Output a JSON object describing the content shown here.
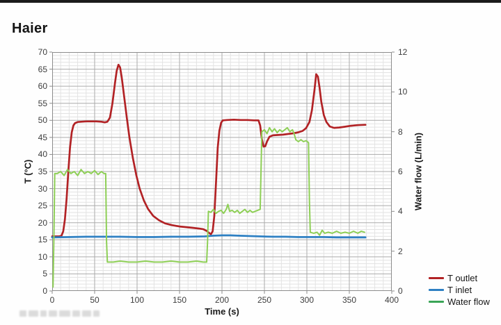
{
  "header": {
    "title": "Haier"
  },
  "legend": {
    "items": [
      {
        "label": "T outlet",
        "color": "#b22225"
      },
      {
        "label": "T inlet",
        "color": "#2e80c3"
      },
      {
        "label": "Water flow",
        "color": "#3aa557"
      }
    ]
  },
  "chart_data": {
    "type": "line",
    "title": "Haier",
    "xlabel": "Time (s)",
    "ylabel_left": "T (°C)",
    "ylabel_right": "Water flow (L/min)",
    "xlim": [
      0,
      400
    ],
    "ylim_left": [
      0,
      70
    ],
    "ylim_right": [
      0,
      12
    ],
    "x_ticks": [
      0,
      50,
      100,
      150,
      200,
      250,
      300,
      350,
      400
    ],
    "y_left_ticks": [
      0,
      5,
      10,
      15,
      20,
      25,
      30,
      35,
      40,
      45,
      50,
      55,
      60,
      65,
      70
    ],
    "y_right_ticks": [
      0,
      2,
      4,
      6,
      8,
      10,
      12
    ],
    "x_minor_step": 10,
    "y_left_minor_step": 1,
    "grid": true,
    "legend_position": "bottom-right-outside",
    "colors": {
      "minor_grid": "#e3e3e3",
      "major_grid": "#ababab",
      "border": "#8c8c8c"
    },
    "series": [
      {
        "name": "T outlet",
        "axis": "left",
        "color": "#b22225",
        "width": 2.7,
        "points": [
          [
            0,
            16
          ],
          [
            4,
            16
          ],
          [
            8,
            16
          ],
          [
            11,
            16.2
          ],
          [
            13,
            17.5
          ],
          [
            15,
            21
          ],
          [
            17,
            27
          ],
          [
            19,
            35
          ],
          [
            21,
            42
          ],
          [
            23,
            46.5
          ],
          [
            25,
            48.5
          ],
          [
            27,
            49.2
          ],
          [
            30,
            49.5
          ],
          [
            34,
            49.6
          ],
          [
            40,
            49.7
          ],
          [
            46,
            49.7
          ],
          [
            52,
            49.7
          ],
          [
            58,
            49.6
          ],
          [
            62,
            49.4
          ],
          [
            65,
            49.6
          ],
          [
            68,
            50.8
          ],
          [
            71,
            55
          ],
          [
            74,
            61
          ],
          [
            76,
            64.5
          ],
          [
            78,
            66.3
          ],
          [
            80,
            65.5
          ],
          [
            82,
            62.5
          ],
          [
            85,
            56.5
          ],
          [
            88,
            50.5
          ],
          [
            91,
            45
          ],
          [
            95,
            39
          ],
          [
            99,
            34
          ],
          [
            103,
            30
          ],
          [
            108,
            26.5
          ],
          [
            113,
            24
          ],
          [
            119,
            22
          ],
          [
            126,
            20.7
          ],
          [
            133,
            19.8
          ],
          [
            141,
            19.3
          ],
          [
            150,
            18.9
          ],
          [
            158,
            18.7
          ],
          [
            166,
            18.5
          ],
          [
            173,
            18.3
          ],
          [
            178,
            18.1
          ],
          [
            182,
            17.6
          ],
          [
            185,
            17
          ],
          [
            187,
            16.6
          ],
          [
            189,
            17.5
          ],
          [
            191,
            22
          ],
          [
            193,
            32
          ],
          [
            195,
            42
          ],
          [
            197,
            47
          ],
          [
            199,
            49.3
          ],
          [
            201,
            50
          ],
          [
            206,
            50.1
          ],
          [
            214,
            50.2
          ],
          [
            222,
            50.1
          ],
          [
            230,
            50.1
          ],
          [
            238,
            50
          ],
          [
            243,
            50
          ],
          [
            245,
            48.5
          ],
          [
            247,
            44.5
          ],
          [
            249,
            42.3
          ],
          [
            251,
            42.4
          ],
          [
            253,
            43.8
          ],
          [
            256,
            45.2
          ],
          [
            260,
            45.6
          ],
          [
            266,
            45.7
          ],
          [
            272,
            45.8
          ],
          [
            278,
            46
          ],
          [
            284,
            46.2
          ],
          [
            290,
            46.5
          ],
          [
            295,
            46.9
          ],
          [
            299,
            47.7
          ],
          [
            303,
            49.5
          ],
          [
            306,
            53
          ],
          [
            309,
            59
          ],
          [
            311,
            63.5
          ],
          [
            313,
            62.8
          ],
          [
            315,
            59.5
          ],
          [
            317,
            55.5
          ],
          [
            320,
            51.5
          ],
          [
            323,
            49.5
          ],
          [
            327,
            48.2
          ],
          [
            332,
            47.8
          ],
          [
            338,
            47.9
          ],
          [
            344,
            48.1
          ],
          [
            352,
            48.4
          ],
          [
            360,
            48.6
          ],
          [
            369,
            48.7
          ]
        ]
      },
      {
        "name": "T inlet",
        "axis": "left",
        "color": "#2e80c3",
        "width": 2.8,
        "points": [
          [
            0,
            15.7
          ],
          [
            20,
            15.8
          ],
          [
            40,
            15.9
          ],
          [
            60,
            15.9
          ],
          [
            80,
            15.9
          ],
          [
            100,
            15.8
          ],
          [
            120,
            15.8
          ],
          [
            140,
            15.9
          ],
          [
            160,
            15.9
          ],
          [
            180,
            16
          ],
          [
            190,
            16.2
          ],
          [
            200,
            16.3
          ],
          [
            210,
            16.3
          ],
          [
            220,
            16.2
          ],
          [
            232,
            16.1
          ],
          [
            245,
            16
          ],
          [
            260,
            15.9
          ],
          [
            275,
            15.9
          ],
          [
            290,
            15.8
          ],
          [
            305,
            15.8
          ],
          [
            320,
            15.8
          ],
          [
            335,
            15.7
          ],
          [
            350,
            15.7
          ],
          [
            369,
            15.7
          ]
        ]
      },
      {
        "name": "Water flow",
        "axis": "right",
        "color": "#8ecf56",
        "width": 2,
        "points": [
          [
            1,
            0.2
          ],
          [
            2,
            2.5
          ],
          [
            3,
            5.9
          ],
          [
            6,
            5.9
          ],
          [
            10,
            6
          ],
          [
            14,
            5.8
          ],
          [
            18,
            6.1
          ],
          [
            22,
            5.9
          ],
          [
            26,
            6
          ],
          [
            30,
            5.8
          ],
          [
            34,
            6.1
          ],
          [
            38,
            5.9
          ],
          [
            42,
            6
          ],
          [
            46,
            5.9
          ],
          [
            50,
            6.05
          ],
          [
            54,
            5.85
          ],
          [
            58,
            6
          ],
          [
            61,
            5.9
          ],
          [
            63,
            5.9
          ],
          [
            64,
            2.5
          ],
          [
            65,
            1.45
          ],
          [
            72,
            1.45
          ],
          [
            80,
            1.5
          ],
          [
            90,
            1.45
          ],
          [
            100,
            1.45
          ],
          [
            110,
            1.5
          ],
          [
            120,
            1.45
          ],
          [
            130,
            1.45
          ],
          [
            140,
            1.5
          ],
          [
            150,
            1.45
          ],
          [
            160,
            1.45
          ],
          [
            170,
            1.5
          ],
          [
            178,
            1.45
          ],
          [
            182,
            1.45
          ],
          [
            183,
            2.5
          ],
          [
            184,
            4
          ],
          [
            187,
            3.95
          ],
          [
            190,
            4.1
          ],
          [
            193,
            3.9
          ],
          [
            196,
            4
          ],
          [
            199,
            4.05
          ],
          [
            202,
            3.9
          ],
          [
            205,
            4.1
          ],
          [
            207,
            4.35
          ],
          [
            209,
            4
          ],
          [
            212,
            4.05
          ],
          [
            215,
            3.95
          ],
          [
            218,
            4.05
          ],
          [
            221,
            3.9
          ],
          [
            224,
            4
          ],
          [
            227,
            4.1
          ],
          [
            230,
            3.95
          ],
          [
            233,
            4.05
          ],
          [
            236,
            3.95
          ],
          [
            239,
            4
          ],
          [
            242,
            4.05
          ],
          [
            245,
            4.1
          ],
          [
            246,
            6
          ],
          [
            247,
            8
          ],
          [
            250,
            8.1
          ],
          [
            253,
            7.9
          ],
          [
            256,
            8.2
          ],
          [
            259,
            8
          ],
          [
            262,
            8.15
          ],
          [
            265,
            7.95
          ],
          [
            268,
            8.1
          ],
          [
            271,
            8
          ],
          [
            274,
            8.1
          ],
          [
            277,
            8.2
          ],
          [
            280,
            8
          ],
          [
            283,
            8.1
          ],
          [
            285,
            7.9
          ],
          [
            287,
            7.6
          ],
          [
            290,
            7.5
          ],
          [
            293,
            7.6
          ],
          [
            296,
            7.5
          ],
          [
            299,
            7.55
          ],
          [
            302,
            7.45
          ],
          [
            303,
            4.5
          ],
          [
            304,
            2.95
          ],
          [
            308,
            2.9
          ],
          [
            312,
            2.95
          ],
          [
            315,
            2.8
          ],
          [
            318,
            3.05
          ],
          [
            321,
            2.9
          ],
          [
            325,
            2.95
          ],
          [
            330,
            2.9
          ],
          [
            335,
            3
          ],
          [
            340,
            2.9
          ],
          [
            345,
            2.95
          ],
          [
            350,
            2.9
          ],
          [
            355,
            3
          ],
          [
            360,
            2.9
          ],
          [
            364,
            3
          ],
          [
            368,
            2.95
          ]
        ]
      }
    ]
  },
  "watermark": {
    "legible": false,
    "block_widths": [
      10,
      14,
      9,
      12,
      16,
      11,
      13,
      9
    ]
  }
}
